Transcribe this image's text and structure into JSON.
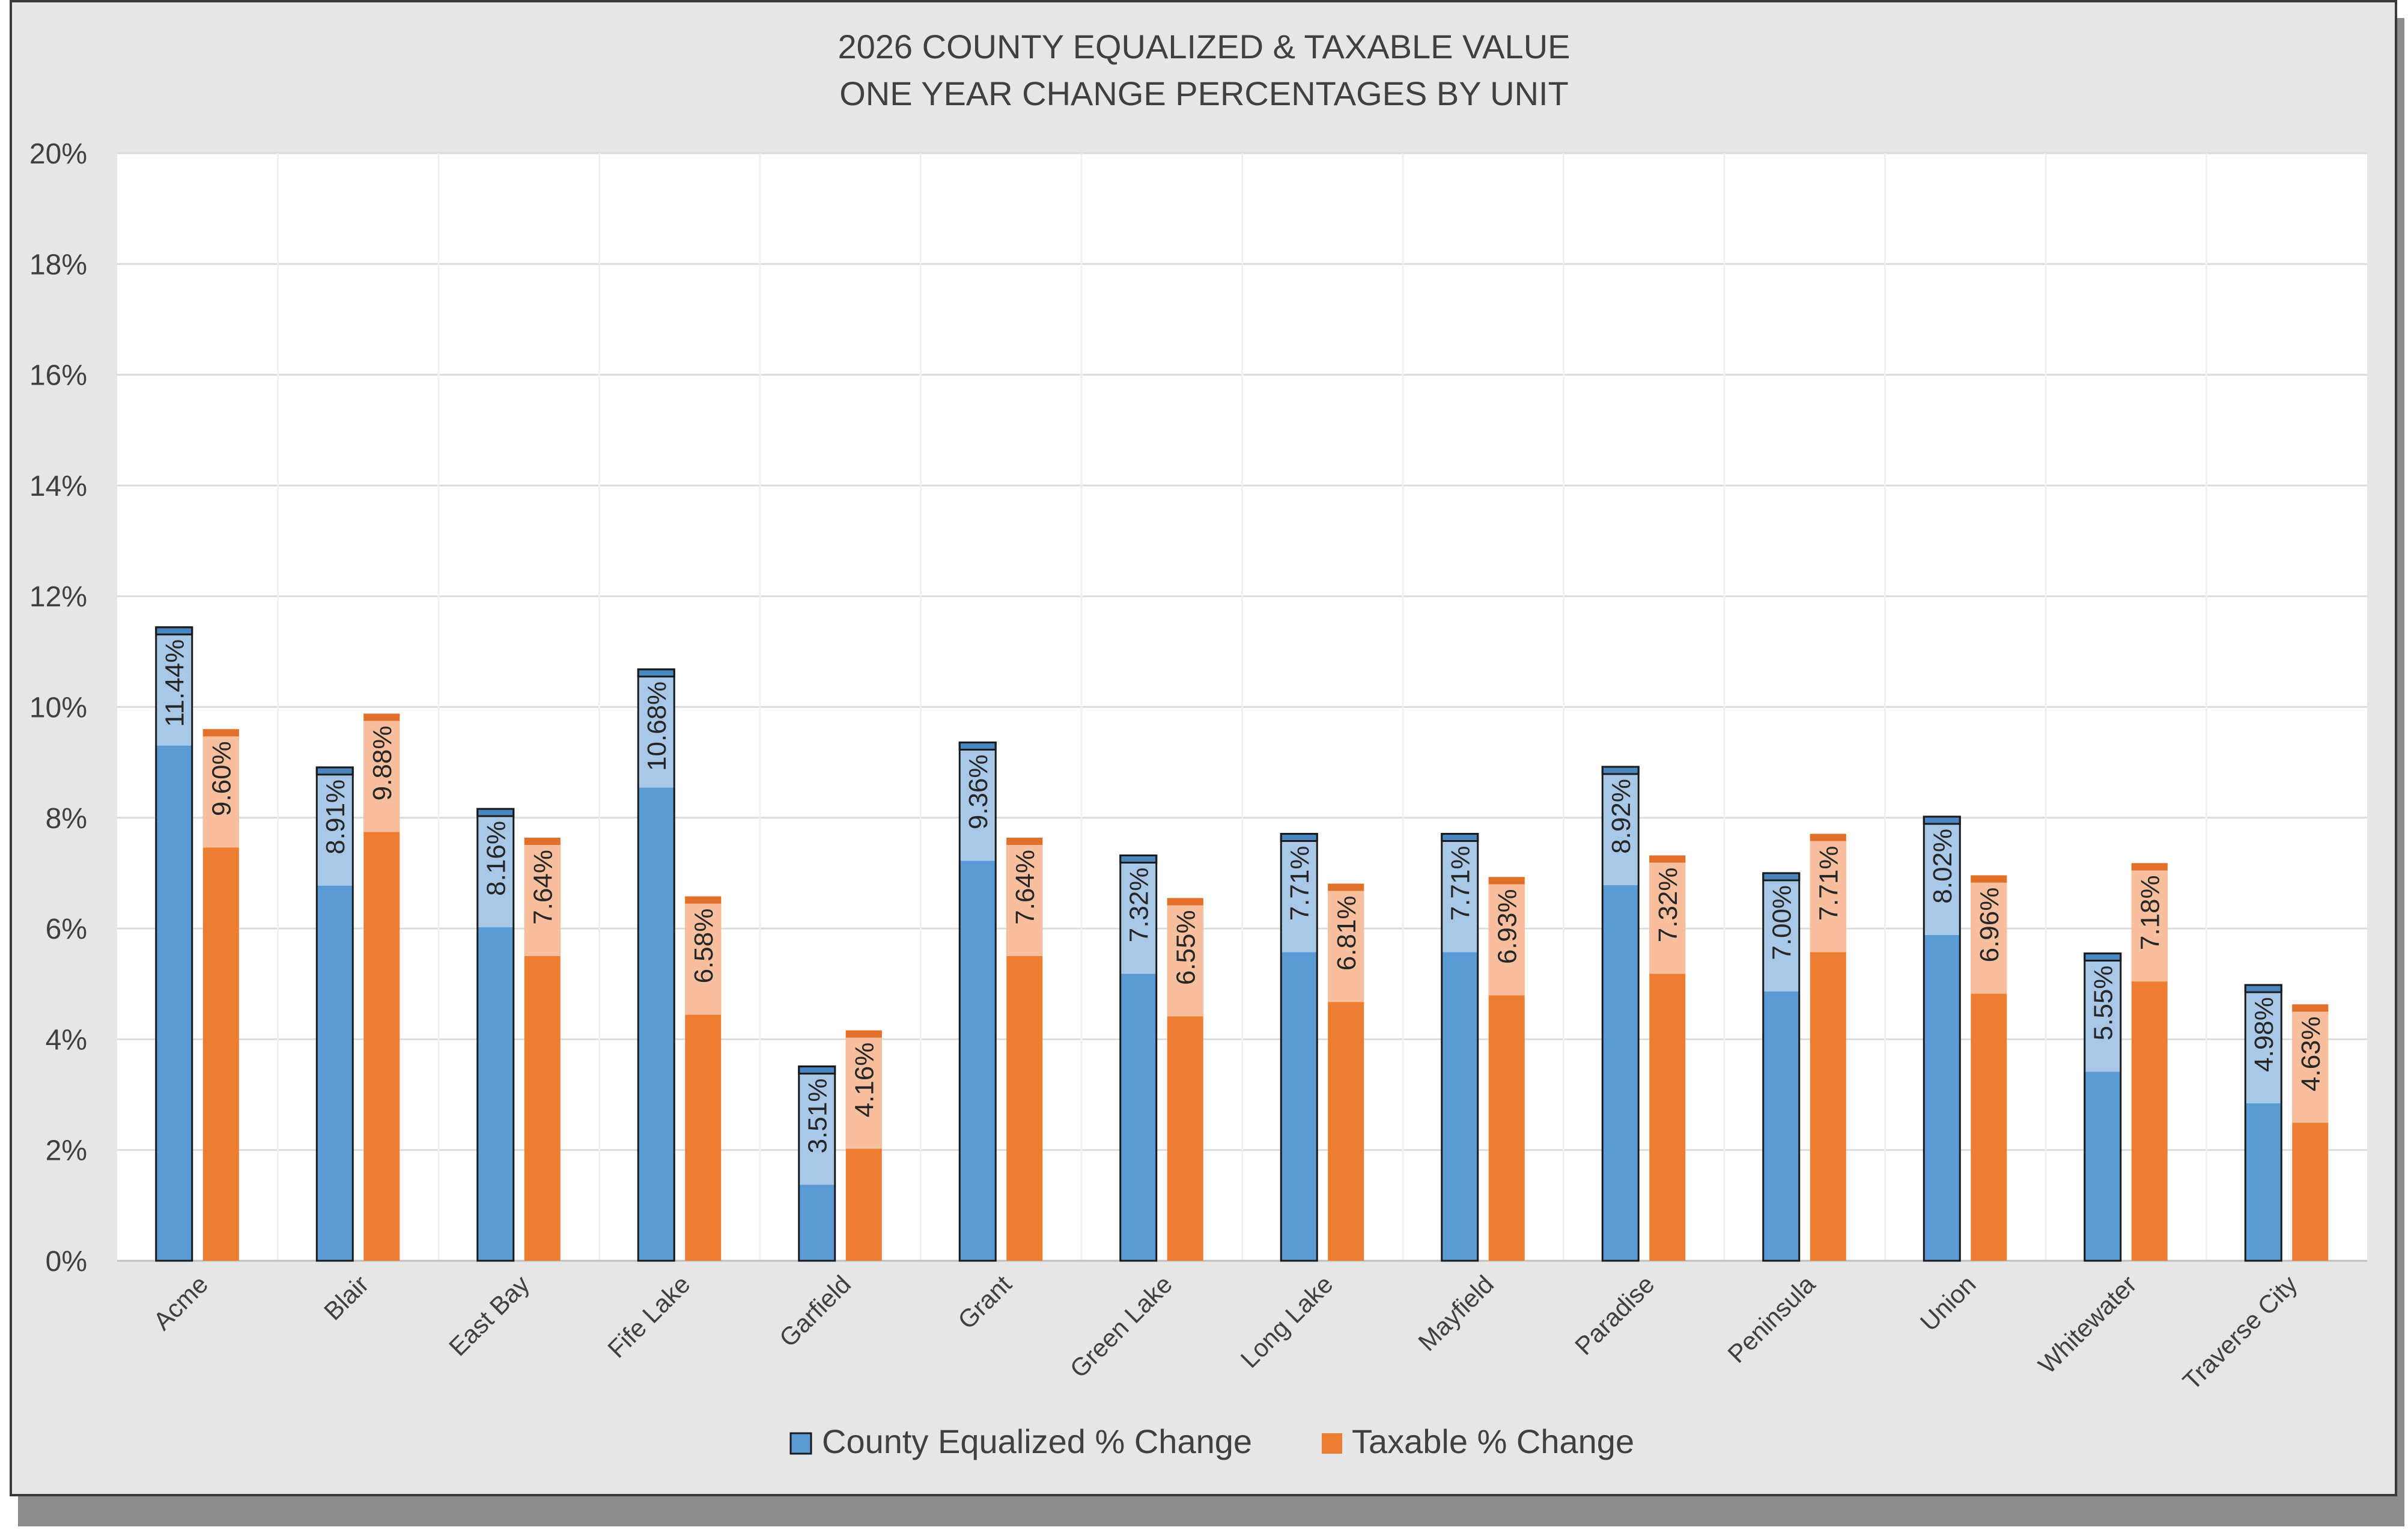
{
  "colors": {
    "frame_bg": "#e6e6e6",
    "plot_bg": "#ffffff",
    "grid": "#dcdcdc",
    "text": "#404040",
    "shadow": "#8c8c8c",
    "series_equalized": "#5b9bd5",
    "series_equalized_light": "#a9c8e8",
    "series_taxable": "#ed7d31",
    "series_taxable_light": "#f7bf9d"
  },
  "chart_data": {
    "type": "bar",
    "title": "2026 COUNTY EQUALIZED & TAXABLE VALUE",
    "subtitle": "ONE YEAR CHANGE PERCENTAGES BY UNIT",
    "categories": [
      "Acme",
      "Blair",
      "East Bay",
      "Fife Lake",
      "Garfield",
      "Grant",
      "Green Lake",
      "Long Lake",
      "Mayfield",
      "Paradise",
      "Peninsula",
      "Union",
      "Whitewater",
      "Traverse City"
    ],
    "series": [
      {
        "name": "County Equalized % Change",
        "values": [
          11.44,
          8.91,
          8.16,
          10.68,
          3.51,
          9.36,
          7.32,
          7.71,
          7.71,
          8.92,
          7.0,
          8.02,
          5.55,
          4.98
        ],
        "labels": [
          "11.44%",
          "8.91%",
          "8.16%",
          "10.68%",
          "3.51%",
          "9.36%",
          "7.32%",
          "7.71%",
          "7.71%",
          "8.92%",
          "7.00%",
          "8.02%",
          "5.55%",
          "4.98%"
        ]
      },
      {
        "name": "Taxable % Change",
        "values": [
          9.6,
          9.88,
          7.64,
          6.58,
          4.16,
          7.64,
          6.55,
          6.81,
          6.93,
          7.32,
          7.71,
          6.96,
          7.18,
          4.63
        ],
        "labels": [
          "9.60%",
          "9.88%",
          "7.64%",
          "6.58%",
          "4.16%",
          "7.64%",
          "6.55%",
          "6.81%",
          "6.93%",
          "7.32%",
          "7.71%",
          "6.96%",
          "7.18%",
          "4.63%"
        ]
      }
    ],
    "ylim": [
      0,
      20
    ],
    "yticks": [
      0,
      2,
      4,
      6,
      8,
      10,
      12,
      14,
      16,
      18,
      20
    ],
    "ytick_labels": [
      "0%",
      "2%",
      "4%",
      "6%",
      "8%",
      "10%",
      "12%",
      "14%",
      "16%",
      "18%",
      "20%"
    ],
    "xlabel": "",
    "ylabel": "",
    "grid": true,
    "legend": "bottom"
  }
}
